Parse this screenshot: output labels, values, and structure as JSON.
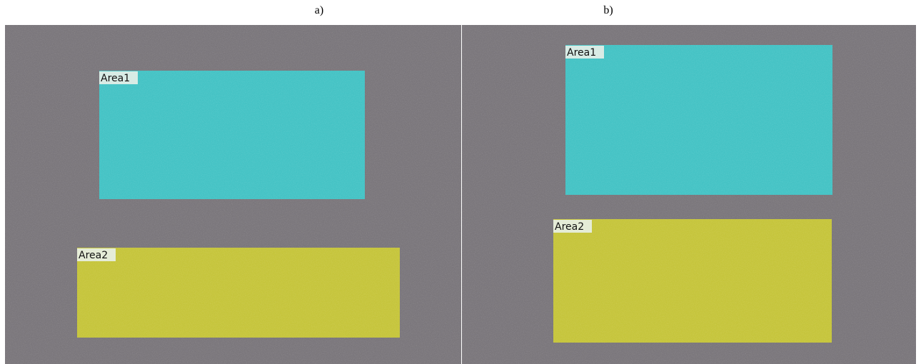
{
  "panels": [
    {
      "caption": "a)",
      "regions": [
        {
          "label": "Area1"
        },
        {
          "label": "Area2"
        }
      ]
    },
    {
      "caption": "b)",
      "regions": [
        {
          "label": "Area1"
        },
        {
          "label": "Area2"
        }
      ]
    }
  ]
}
